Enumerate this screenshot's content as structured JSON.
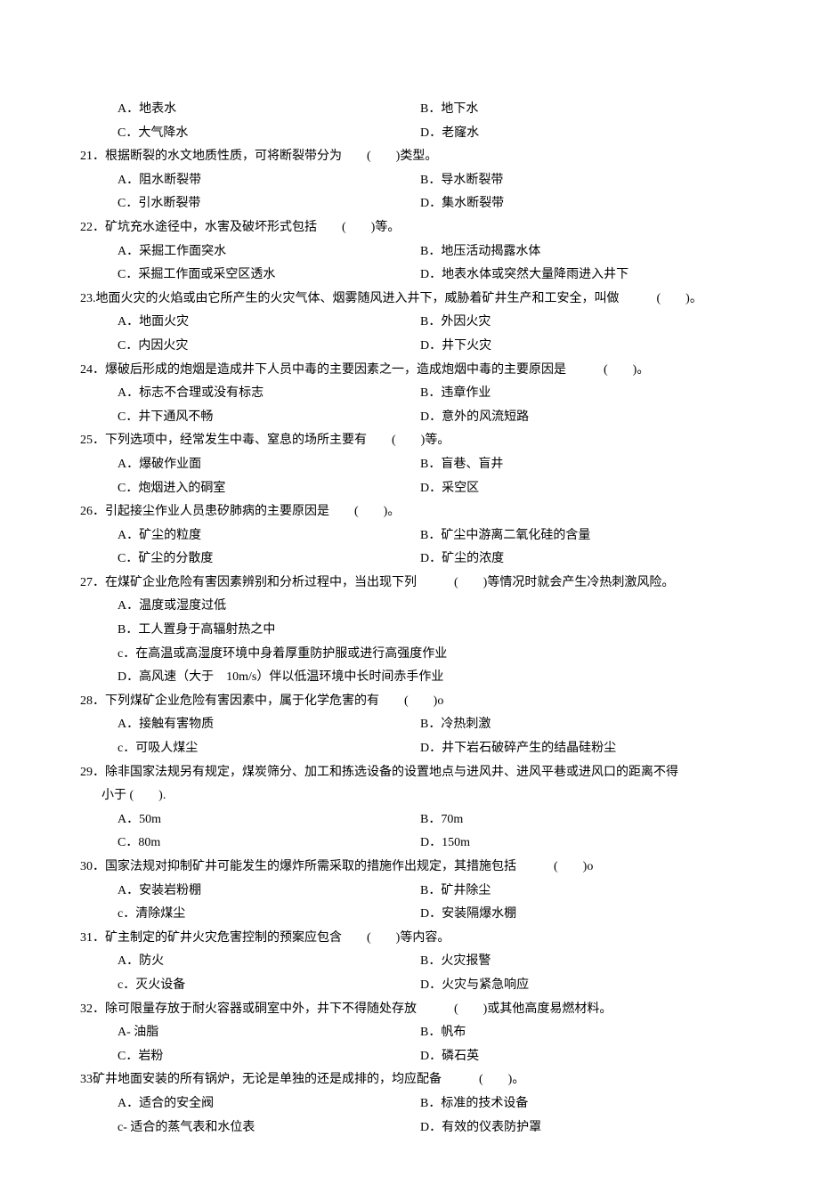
{
  "font": {
    "family": "SimSun",
    "size_pt": 10.5,
    "color": "#000000"
  },
  "background_color": "#ffffff",
  "questions": [
    {
      "num": "",
      "stem": "",
      "opts": [
        {
          "l": "A．",
          "lt": "地表水",
          "r": "B．",
          "rt": "地下水"
        },
        {
          "l": "C．",
          "lt": "大气降水",
          "r": "D．",
          "rt": "老窿水"
        }
      ]
    },
    {
      "num": "21．",
      "stem": "根据断裂的水文地质性质，可将断裂带分为　　(　　)类型。",
      "opts": [
        {
          "l": "A．",
          "lt": "阻水断裂带",
          "r": "B．",
          "rt": "导水断裂带"
        },
        {
          "l": "C．",
          "lt": "引水断裂带",
          "r": "D．",
          "rt": "集水断裂带"
        }
      ]
    },
    {
      "num": "22．",
      "stem": "矿坑充水途径中，水害及破坏形式包括　　(　　)等。",
      "opts": [
        {
          "l": "A．",
          "lt": "采掘工作面突水",
          "r": "B．",
          "rt": "地压活动揭露水体"
        },
        {
          "l": "C．",
          "lt": "采掘工作面或采空区透水",
          "r": "D．",
          "rt": "地表水体或突然大量降雨进入井下"
        }
      ]
    },
    {
      "num": "23.",
      "stem": "地面火灾的火焰或由它所产生的火灾气体、烟雾随风进入井下，威胁着矿井生产和工安全，叫做　　　(　　)。",
      "opts": [
        {
          "l": "A．",
          "lt": "地面火灾",
          "r": "B．",
          "rt": "外因火灾"
        },
        {
          "l": "C．",
          "lt": "内因火灾",
          "r": "D．",
          "rt": "井下火灾"
        }
      ]
    },
    {
      "num": "24．",
      "stem": "爆破后形成的炮烟是造成井下人员中毒的主要因素之一，造成炮烟中毒的主要原因是　　　(　　)。",
      "opts": [
        {
          "l": "A．",
          "lt": "标志不合理或没有标志",
          "r": "B．",
          "rt": "违章作业"
        },
        {
          "l": "C．",
          "lt": "井下通风不畅",
          "r": "D．",
          "rt": "意外的风流短路"
        }
      ]
    },
    {
      "num": "25．",
      "stem": "下列选项中，经常发生中毒、窒息的场所主要有　　(　　)等。",
      "opts": [
        {
          "l": "A．",
          "lt": "爆破作业面",
          "r": "B．",
          "rt": "盲巷、盲井"
        },
        {
          "l": "C．",
          "lt": "炮烟进入的硐室",
          "r": "D．",
          "rt": "采空区"
        }
      ]
    },
    {
      "num": "26．",
      "stem": "引起接尘作业人员患矽肺病的主要原因是　　(　　)。",
      "opts": [
        {
          "l": "A．",
          "lt": "矿尘的粒度",
          "r": "B．",
          "rt": "矿尘中游离二氧化硅的含量"
        },
        {
          "l": "C．",
          "lt": "矿尘的分散度",
          "r": "D．",
          "rt": "矿尘的浓度"
        }
      ]
    },
    {
      "num": "27．",
      "stem": "在煤矿企业危险有害因素辨别和分析过程中，当出现下列　　　(　　)等情况时就会产生冷热刺激风险。",
      "full": [
        "A．温度或湿度过低",
        "B．工人置身于高辐射热之中",
        "c．在高温或高湿度环境中身着厚重防护服或进行高强度作业",
        "D．高风速（大于　10m/s）伴以低温环境中长时间赤手作业"
      ]
    },
    {
      "num": "28．",
      "stem": "下列煤矿企业危险有害因素中，属于化学危害的有　　(　　)o",
      "opts": [
        {
          "l": "A．",
          "lt": "接触有害物质",
          "r": "B．",
          "rt": "冷热刺激"
        },
        {
          "l": "c．",
          "lt": "可吸人煤尘",
          "r": "D．",
          "rt": "井下岩石破碎产生的结晶硅粉尘"
        }
      ]
    },
    {
      "num": "29．",
      "stem": "除非国家法规另有规定，煤炭筛分、加工和拣选设备的设置地点与进风井、进风平巷或进风口的距离不得",
      "stem2": "小于 (　　).",
      "opts": [
        {
          "l": "A．",
          "lt": "50m",
          "r": "B．",
          "rt": "70m"
        },
        {
          "l": "C．",
          "lt": "80m",
          "r": "D．",
          "rt": "150m"
        }
      ]
    },
    {
      "num": "30．",
      "stem": "国家法规对抑制矿井可能发生的爆炸所需采取的措施作出规定，其措施包括　　　(　　)o",
      "opts": [
        {
          "l": "A．",
          "lt": "安装岩粉棚",
          "r": "B．",
          "rt": "矿井除尘"
        },
        {
          "l": "c．",
          "lt": "清除煤尘",
          "r": "D．",
          "rt": "安装隔爆水棚"
        }
      ]
    },
    {
      "num": "31．",
      "stem": "矿主制定的矿井火灾危害控制的预案应包含　　(　　)等内容。",
      "opts": [
        {
          "l": "A．",
          "lt": "防火",
          "r": "B．",
          "rt": "火灾报警"
        },
        {
          "l": "c．",
          "lt": "灭火设备",
          "r": "D．",
          "rt": "火灾与紧急响应"
        }
      ]
    },
    {
      "num": "32．",
      "stem": "除可限量存放于耐火容器或硐室中外，井下不得随处存放　　　(　　)或其他高度易燃材料。",
      "opts": [
        {
          "l": "A-",
          "lt": " 油脂",
          "r": "B．",
          "rt": "帆布"
        },
        {
          "l": "C．",
          "lt": "岩粉",
          "r": "D．",
          "rt": "磷石英"
        }
      ]
    },
    {
      "num": "33 ",
      "stem": "矿井地面安装的所有锅炉，无论是单独的还是成排的，均应配备　　　(　　)。",
      "opts": [
        {
          "l": "A．",
          "lt": "适合的安全阀",
          "r": "B．",
          "rt": "标准的技术设备"
        },
        {
          "l": "c-",
          "lt": " 适合的蒸气表和水位表",
          "r": "D．",
          "rt": "有效的仪表防护罩"
        }
      ]
    }
  ]
}
